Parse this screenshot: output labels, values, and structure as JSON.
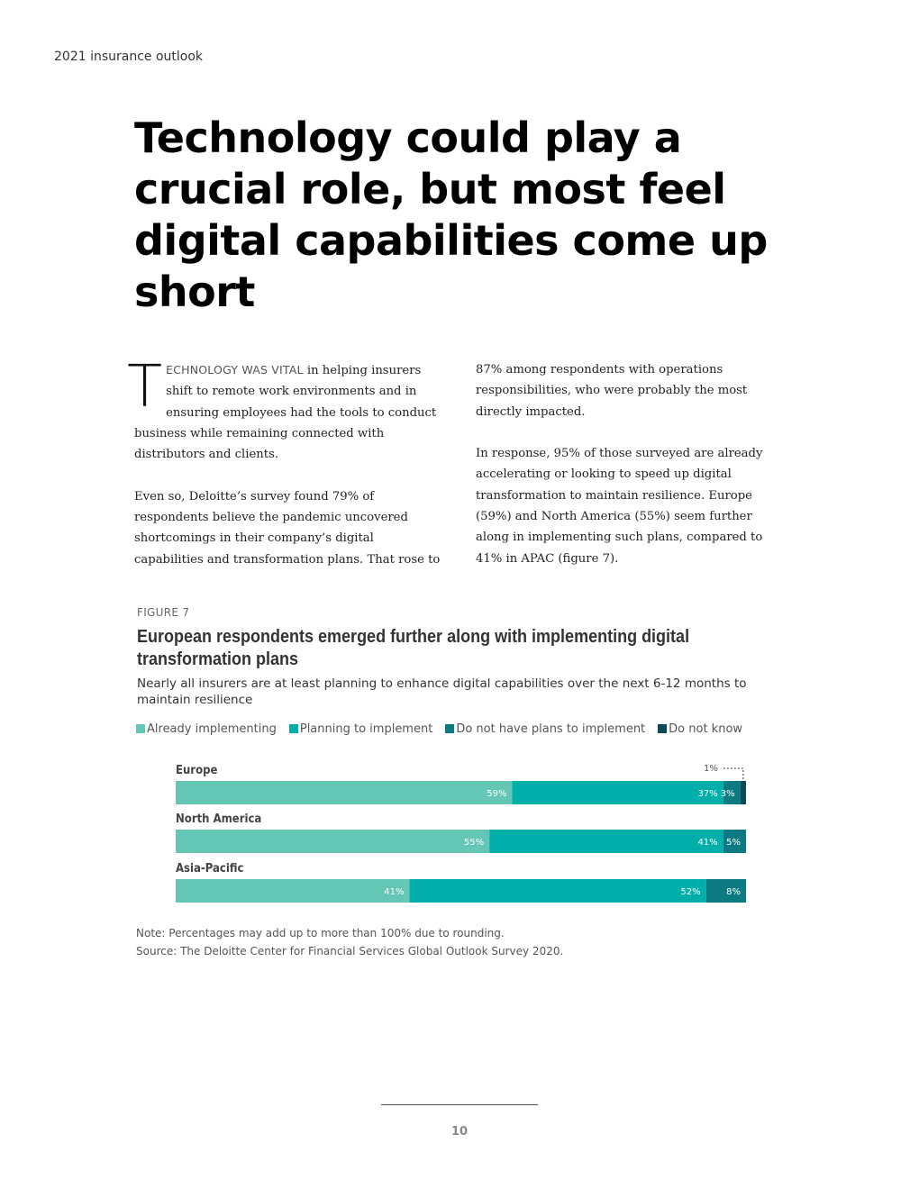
{
  "header": {
    "label": "2021 insurance outlook"
  },
  "article": {
    "title": "Technology could play a crucial role, but most feel digital capabilities come up short",
    "dropcap": "T",
    "lead_in": "ECHNOLOGY WAS VITAL",
    "para1_rest": " in helping insurers shift to remote work environments and in ensuring employees had the tools to conduct business while remaining connected with distributors and clients.",
    "para2": "Even so, Deloitte’s survey found 79% of respondents believe the pandemic uncovered shortcomings in their company’s digital capabilities and transformation plans. That rose to",
    "para3": "87% among respondents with operations responsibilities, who were probably the most directly impacted.",
    "para4": "In response, 95% of those surveyed are already accelerating or looking to speed up digital transformation to maintain resilience. Europe (59%) and North America (55%) seem further along in implementing such plans, compared to 41% in APAC (figure 7)."
  },
  "figure": {
    "label": "FIGURE 7",
    "title": "European respondents emerged further along with implementing digital transformation plans",
    "subtitle": "Nearly all insurers are at least planning to enhance digital capabilities over the next 6-12 months to maintain resilience",
    "note": "Note: Percentages may add up to more than 100% due to rounding.",
    "source": "Source: The Deloitte Center for Financial Services Global Outlook Survey 2020."
  },
  "chart_data": {
    "type": "bar",
    "orientation": "horizontal",
    "stacked": true,
    "categories": [
      "Europe",
      "North America",
      "Asia-Pacific"
    ],
    "series": [
      {
        "name": "Already implementing",
        "values": [
          59,
          55,
          41
        ],
        "labels": [
          "59%",
          "55%",
          "41%"
        ],
        "color": "#64c6b5"
      },
      {
        "name": "Planning to implement",
        "values": [
          37,
          41,
          52
        ],
        "labels": [
          "37%",
          "41%",
          "52%"
        ],
        "color": "#00afaa"
      },
      {
        "name": "Do not have plans to implement",
        "values": [
          3,
          5,
          8
        ],
        "labels": [
          "3%",
          "5%",
          "8%"
        ],
        "color": "#0b7a82"
      },
      {
        "name": "Do not know",
        "values": [
          1,
          0,
          0
        ],
        "labels": [
          "1%",
          "",
          ""
        ],
        "color": "#0b4b58"
      }
    ],
    "xlim": [
      0,
      100
    ],
    "legend_position": "top-left",
    "grid": false
  },
  "footer": {
    "page_number": "10"
  }
}
